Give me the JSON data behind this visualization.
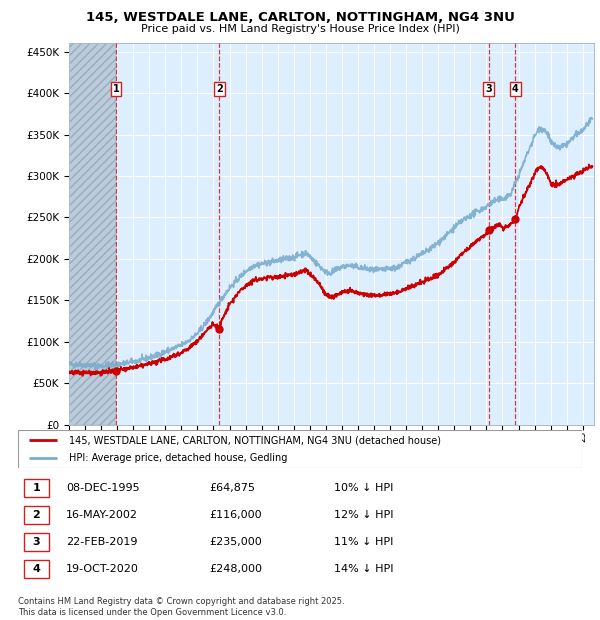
{
  "title1": "145, WESTDALE LANE, CARLTON, NOTTINGHAM, NG4 3NU",
  "title2": "Price paid vs. HM Land Registry's House Price Index (HPI)",
  "ylabel_vals": [
    "£0",
    "£50K",
    "£100K",
    "£150K",
    "£200K",
    "£250K",
    "£300K",
    "£350K",
    "£400K",
    "£450K"
  ],
  "yticks": [
    0,
    50000,
    100000,
    150000,
    200000,
    250000,
    300000,
    350000,
    400000,
    450000
  ],
  "xlim_start": 1993.0,
  "xlim_end": 2025.7,
  "ylim": [
    0,
    460000
  ],
  "red_line_color": "#cc0000",
  "blue_line_color": "#7aadcc",
  "sale_marker_color": "#cc0000",
  "vline_color": "#cc2222",
  "bg_color": "#ddeeff",
  "hatch_color": "#bbccdd",
  "grid_color": "#ffffff",
  "legend_line1": "145, WESTDALE LANE, CARLTON, NOTTINGHAM, NG4 3NU (detached house)",
  "legend_line2": "HPI: Average price, detached house, Gedling",
  "sales": [
    {
      "num": 1,
      "year": 1995.93,
      "price": 64875,
      "label": "08-DEC-1995",
      "price_str": "£64,875",
      "pct": "10% ↓ HPI"
    },
    {
      "num": 2,
      "year": 2002.37,
      "price": 116000,
      "label": "16-MAY-2002",
      "price_str": "£116,000",
      "pct": "12% ↓ HPI"
    },
    {
      "num": 3,
      "year": 2019.13,
      "price": 235000,
      "label": "22-FEB-2019",
      "price_str": "£235,000",
      "pct": "11% ↓ HPI"
    },
    {
      "num": 4,
      "year": 2020.8,
      "price": 248000,
      "label": "19-OCT-2020",
      "price_str": "£248,000",
      "pct": "14% ↓ HPI"
    }
  ],
  "footer1": "Contains HM Land Registry data © Crown copyright and database right 2025.",
  "footer2": "This data is licensed under the Open Government Licence v3.0."
}
